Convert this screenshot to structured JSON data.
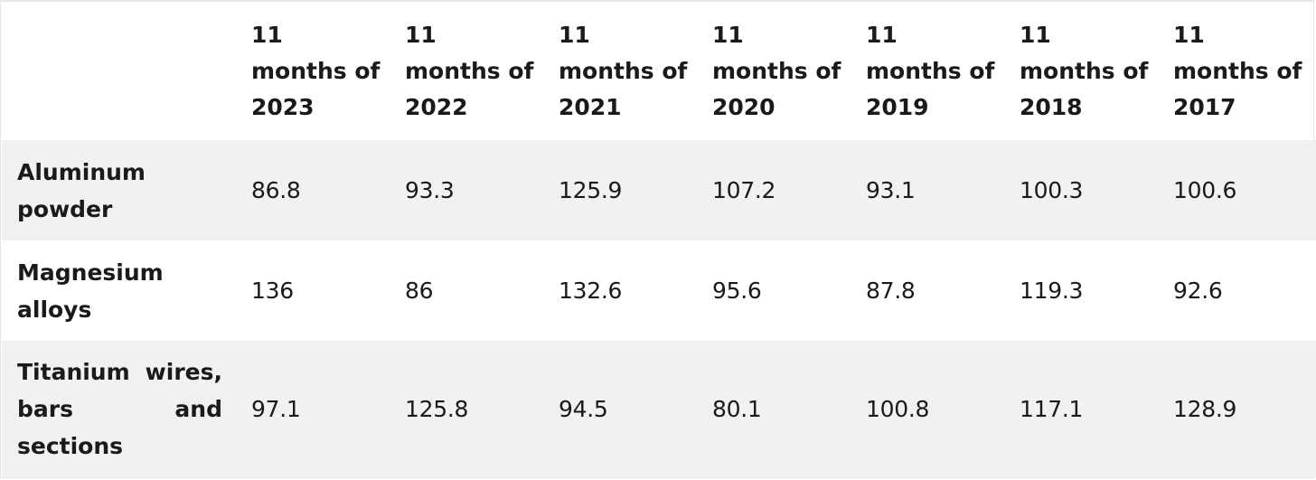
{
  "table": {
    "corner_label": "",
    "columns": [
      {
        "line1": "11",
        "line2": "months of",
        "line3": "2023"
      },
      {
        "line1": "11",
        "line2": "months of",
        "line3": "2022"
      },
      {
        "line1": "11",
        "line2": "months of",
        "line3": "2021"
      },
      {
        "line1": "11",
        "line2": "months of",
        "line3": "2020"
      },
      {
        "line1": "11",
        "line2": "months of",
        "line3": "2019"
      },
      {
        "line1": "11",
        "line2": "months of",
        "line3": "2018"
      },
      {
        "line1": "11",
        "line2": "months of",
        "line3": "2017"
      }
    ],
    "rows": [
      {
        "label_lines": [
          "Aluminum",
          "powder"
        ],
        "values": [
          "86.8",
          "93.3",
          "125.9",
          "107.2",
          "93.1",
          "100.3",
          "100.6"
        ]
      },
      {
        "label_lines": [
          "Magnesium",
          "alloys"
        ],
        "values": [
          "136",
          "86",
          "132.6",
          "95.6",
          "87.8",
          "119.3",
          "92.6"
        ]
      },
      {
        "label_lines": [
          "Titanium wires,",
          "bars and",
          "sections"
        ],
        "values": [
          "97.1",
          "125.8",
          "94.5",
          "80.1",
          "100.8",
          "117.1",
          "128.9"
        ]
      }
    ]
  }
}
